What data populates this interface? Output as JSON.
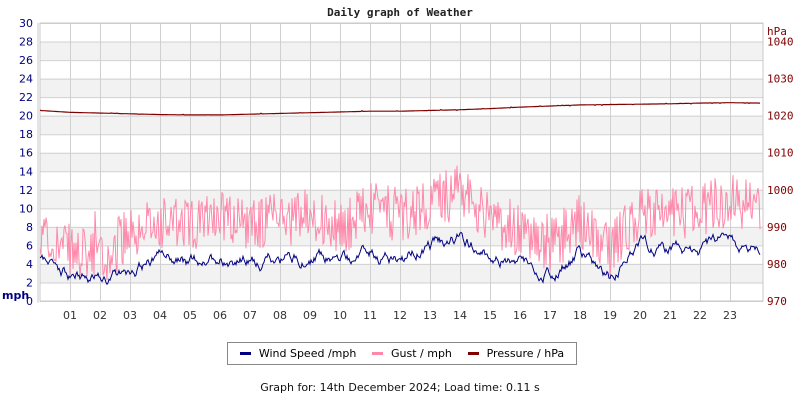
{
  "title": "Daily graph of Weather",
  "footer": "Graph for: 14th December 2024; Load time: 0.11 s",
  "legend": [
    {
      "label": "Wind Speed /mph",
      "color": "#000080"
    },
    {
      "label": "Gust / mph",
      "color": "#ff88aa"
    },
    {
      "label": "Pressure / hPa",
      "color": "#800000"
    }
  ],
  "colors": {
    "left_axis": "#000080",
    "right_axis": "#800000",
    "grid": "#d0d0d0",
    "band": "#f2f2f2",
    "tick_text": "#333333"
  },
  "chart_data": {
    "type": "line",
    "title": "Daily graph of Weather",
    "xlabel": "",
    "ylabel": "mph",
    "y2label": "hPa",
    "x_ticks": [
      "01",
      "02",
      "03",
      "04",
      "05",
      "06",
      "07",
      "08",
      "09",
      "10",
      "11",
      "12",
      "13",
      "14",
      "15",
      "16",
      "17",
      "18",
      "19",
      "20",
      "21",
      "22",
      "23"
    ],
    "ylim": [
      0,
      30
    ],
    "y_ticks": [
      0,
      2,
      4,
      6,
      8,
      10,
      12,
      14,
      16,
      18,
      20,
      22,
      24,
      26,
      28,
      30
    ],
    "y2lim": [
      970,
      1045
    ],
    "y2_ticks": [
      970,
      980,
      990,
      1000,
      1010,
      1020,
      1030,
      1040
    ],
    "grid": true,
    "legend_position": "bottom",
    "x_hours": [
      0,
      1,
      2,
      3,
      4,
      5,
      6,
      7,
      8,
      9,
      10,
      11,
      12,
      13,
      14,
      15,
      16,
      17,
      18,
      19,
      20,
      21,
      22,
      23,
      24
    ],
    "series": [
      {
        "name": "Wind Speed /mph",
        "axis": "left",
        "color": "#000080",
        "values": [
          4.5,
          3.0,
          2.0,
          3.5,
          4.6,
          4.2,
          4.8,
          4.3,
          4.6,
          4.8,
          4.4,
          5.0,
          4.6,
          5.8,
          7.0,
          5.0,
          4.2,
          3.2,
          5.2,
          2.5,
          5.6,
          5.4,
          5.6,
          6.4,
          5.8
        ]
      },
      {
        "name": "Gust / mph",
        "axis": "left",
        "color": "#ff88aa",
        "values": [
          6.5,
          5.0,
          4.0,
          7.0,
          8.0,
          7.5,
          9.0,
          8.0,
          8.5,
          9.0,
          7.5,
          9.5,
          9.0,
          10.5,
          11.5,
          8.5,
          7.0,
          5.5,
          8.5,
          5.0,
          9.5,
          9.0,
          9.5,
          10.5,
          9.5
        ]
      },
      {
        "name": "Pressure / hPa",
        "axis": "right",
        "color": "#800000",
        "values": [
          1021.4,
          1020.9,
          1020.7,
          1020.5,
          1020.3,
          1020.2,
          1020.2,
          1020.4,
          1020.6,
          1020.8,
          1021.0,
          1021.2,
          1021.2,
          1021.4,
          1021.6,
          1021.9,
          1022.3,
          1022.6,
          1022.9,
          1023.0,
          1023.1,
          1023.2,
          1023.4,
          1023.5,
          1023.4
        ]
      }
    ]
  }
}
